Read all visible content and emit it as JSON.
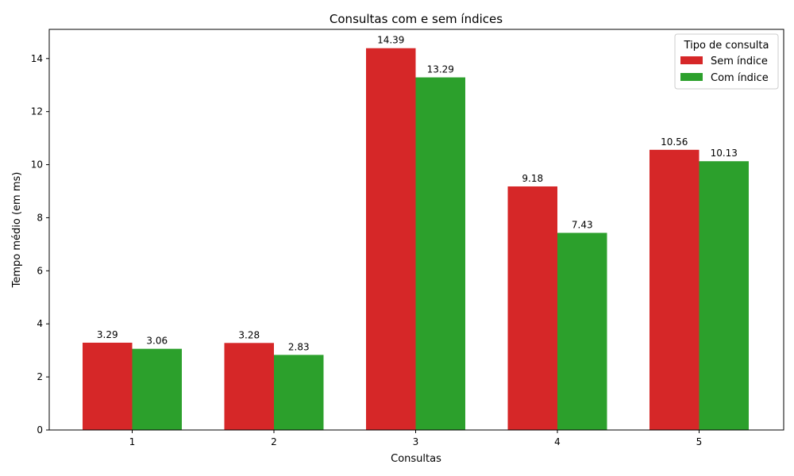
{
  "chart_data": {
    "type": "bar",
    "title": "Consultas com e sem índices",
    "xlabel": "Consultas",
    "ylabel": "Tempo médio (em ms)",
    "categories": [
      "1",
      "2",
      "3",
      "4",
      "5"
    ],
    "ylim": [
      0,
      15.1
    ],
    "yticks": [
      0,
      2,
      4,
      6,
      8,
      10,
      12,
      14
    ],
    "series": [
      {
        "name": "Sem índice",
        "color": "#d62728",
        "values": [
          3.29,
          3.28,
          14.39,
          9.18,
          10.56
        ],
        "labels": [
          "3.29",
          "3.28",
          "14.39",
          "9.18",
          "10.56"
        ]
      },
      {
        "name": "Com índice",
        "color": "#2ca02c",
        "values": [
          3.06,
          2.83,
          13.29,
          7.43,
          10.13
        ],
        "labels": [
          "3.06",
          "2.83",
          "13.29",
          "7.43",
          "10.13"
        ]
      }
    ],
    "legend": {
      "title": "Tipo de consulta",
      "position": "top-right"
    },
    "grid": false
  }
}
